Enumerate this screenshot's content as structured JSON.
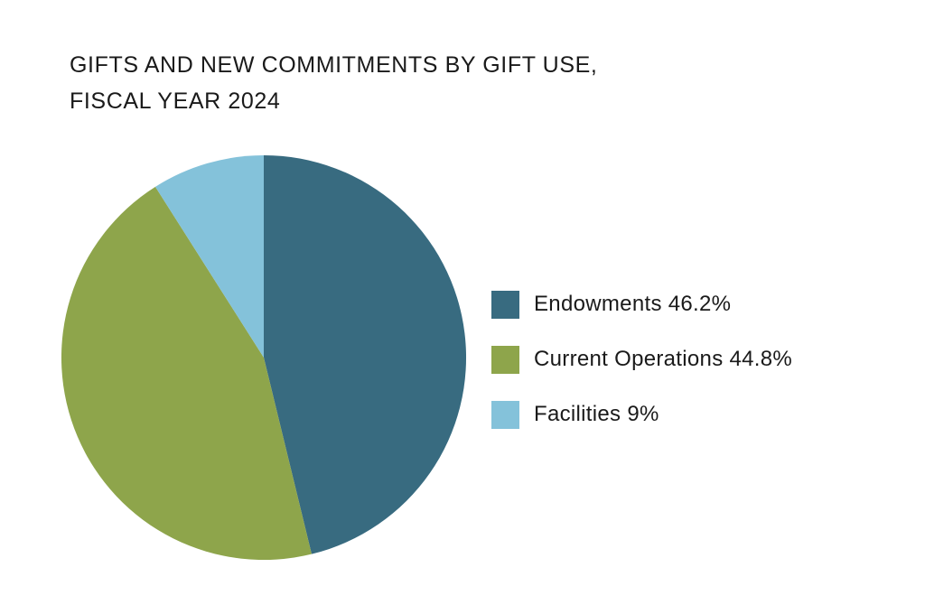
{
  "chart_data": {
    "type": "pie",
    "title_lines": [
      "GIFTS AND NEW COMMITMENTS BY GIFT USE,",
      "FISCAL YEAR 2024"
    ],
    "slices": [
      {
        "name": "Endowments",
        "value": 46.2,
        "label": "Endowments 46.2%",
        "color": "#386b80"
      },
      {
        "name": "Current Operations",
        "value": 44.8,
        "label": "Current Operations 44.8%",
        "color": "#8ea54b"
      },
      {
        "name": "Facilities",
        "value": 9,
        "label": "Facilities 9%",
        "color": "#84c2da"
      }
    ],
    "start": "top",
    "direction": "clockwise",
    "legend_position": "right"
  }
}
